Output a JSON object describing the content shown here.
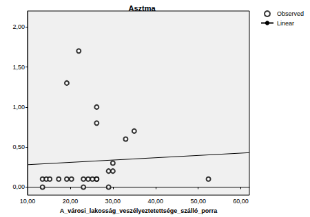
{
  "chart_data": {
    "type": "scatter",
    "title": "Asztma",
    "x_label": "A_városi_lakosság_veszélyeztetettsége_szálló_porra",
    "series": [
      {
        "name": "Observed",
        "type": "scatter",
        "marker": "open_circle",
        "color": "#000000",
        "x": [
          13.5,
          13.5,
          14.4,
          15.2,
          17.3,
          19.2,
          20.3,
          19.2,
          22,
          23.1,
          23.1,
          24.2,
          25.2,
          26.2,
          26.2,
          26.2,
          26.2,
          29,
          29,
          30,
          30,
          33,
          35,
          52.4
        ],
        "values": [
          0.1,
          0.0,
          0.1,
          0.1,
          0.1,
          0.1,
          0.1,
          1.3,
          1.7,
          0.1,
          0.0,
          0.1,
          0.1,
          0.1,
          1.0,
          0.8,
          0.1,
          0.2,
          0.0,
          0.3,
          0.2,
          0.6,
          0.7,
          0.1
        ]
      },
      {
        "name": "Linear",
        "type": "line",
        "line_style": "solid",
        "color": "#000000",
        "x": [
          10,
          62
        ],
        "values": [
          0.28,
          0.43
        ]
      }
    ],
    "xlim": [
      10,
      62
    ],
    "ylim": [
      -0.1,
      2.2
    ],
    "xticks": [
      {
        "value": 10,
        "label": "10,00"
      },
      {
        "value": 20,
        "label": "20,00"
      },
      {
        "value": 30,
        "label": "30,00"
      },
      {
        "value": 40,
        "label": "40,00"
      },
      {
        "value": 50,
        "label": "50,00"
      },
      {
        "value": 60,
        "label": "60,00"
      }
    ],
    "yticks": [
      {
        "value": 0,
        "label": "0,00"
      },
      {
        "value": 0.5,
        "label": "0,50"
      },
      {
        "value": 1,
        "label": "1,00"
      },
      {
        "value": 1.5,
        "label": "1,50"
      },
      {
        "value": 2,
        "label": "2,00"
      }
    ],
    "grid": false,
    "legend": "top right"
  }
}
